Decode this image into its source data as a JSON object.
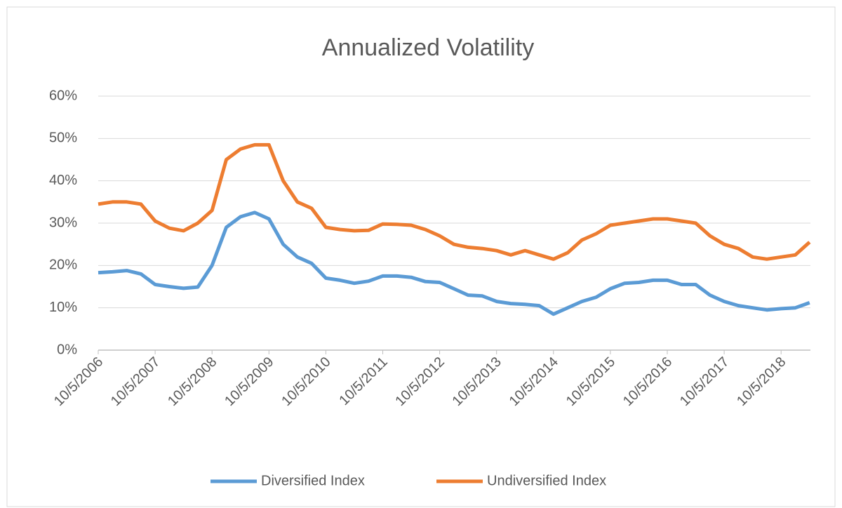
{
  "chart_data": {
    "type": "line",
    "title": "Annualized Volatility",
    "categories": [
      "10/5/2006",
      null,
      null,
      null,
      "10/5/2007",
      null,
      null,
      null,
      "10/5/2008",
      null,
      null,
      null,
      "10/5/2009",
      null,
      null,
      null,
      "10/5/2010",
      null,
      null,
      null,
      "10/5/2011",
      null,
      null,
      null,
      "10/5/2012",
      null,
      null,
      null,
      "10/5/2013",
      null,
      null,
      null,
      "10/5/2014",
      null,
      null,
      null,
      "10/5/2015",
      null,
      null,
      null,
      "10/5/2016",
      null,
      null,
      null,
      "10/5/2017",
      null,
      null,
      null,
      "10/5/2018",
      null,
      null
    ],
    "series": [
      {
        "name": "Diversified Index",
        "color": "#5b9bd5",
        "values": [
          18.3,
          18.5,
          18.8,
          18.0,
          15.5,
          15.0,
          14.6,
          14.9,
          20,
          29,
          31.5,
          32.5,
          31,
          25,
          22,
          20.5,
          17,
          16.5,
          15.8,
          16.3,
          17.5,
          17.5,
          17.2,
          16.2,
          16,
          14.5,
          13,
          12.8,
          11.5,
          11,
          10.8,
          10.5,
          8.5,
          10,
          11.5,
          12.5,
          14.5,
          15.8,
          16,
          16.5,
          16.5,
          15.5,
          15.5,
          13,
          11.5,
          10.5,
          10,
          9.5,
          9.8,
          10,
          11.2
        ]
      },
      {
        "name": "Undiversified Index",
        "color": "#ed7d31",
        "values": [
          34.5,
          35,
          35,
          34.5,
          30.5,
          28.8,
          28.2,
          30,
          33,
          45,
          47.5,
          48.5,
          48.5,
          40,
          35,
          33.5,
          29,
          28.5,
          28.2,
          28.3,
          29.8,
          29.7,
          29.5,
          28.5,
          27,
          25,
          24.3,
          24,
          23.5,
          22.5,
          23.5,
          22.5,
          21.5,
          23,
          26,
          27.5,
          29.5,
          30,
          30.5,
          31,
          31,
          30.5,
          30,
          27,
          25,
          24,
          22,
          21.5,
          22,
          22.5,
          25.5
        ]
      }
    ],
    "ylim": [
      0,
      60
    ],
    "yticks": [
      {
        "value": 0,
        "label": "0%"
      },
      {
        "value": 10,
        "label": "10%"
      },
      {
        "value": 20,
        "label": "20%"
      },
      {
        "value": 30,
        "label": "30%"
      },
      {
        "value": 40,
        "label": "40%"
      },
      {
        "value": 50,
        "label": "50%"
      },
      {
        "value": 60,
        "label": "60%"
      }
    ],
    "grid": true,
    "legend": "bottom"
  }
}
